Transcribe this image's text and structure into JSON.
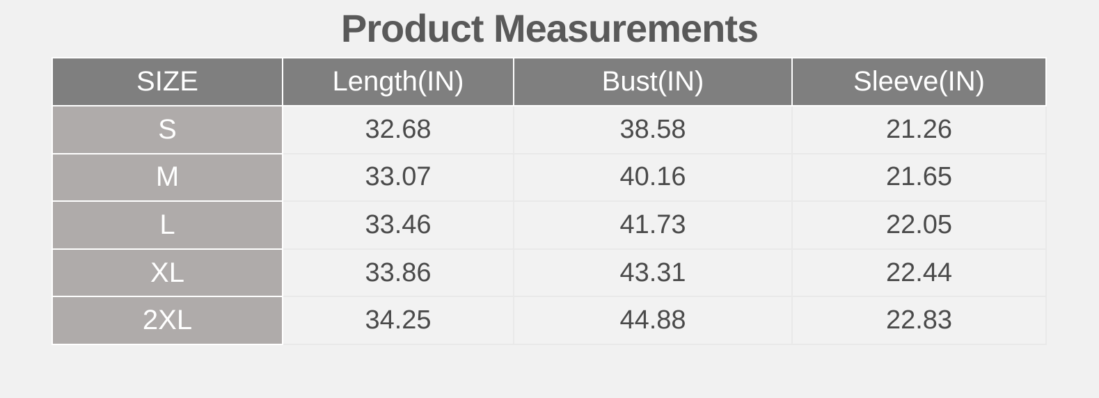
{
  "title": "Product Measurements",
  "chart_data": {
    "type": "table",
    "title": "Product Measurements",
    "columns": [
      "SIZE",
      "Length(IN)",
      "Bust(IN)",
      "Sleeve(IN)"
    ],
    "rows": [
      [
        "S",
        32.68,
        38.58,
        21.26
      ],
      [
        "M",
        33.07,
        40.16,
        21.65
      ],
      [
        "L",
        33.46,
        41.73,
        22.05
      ],
      [
        "XL",
        33.86,
        43.31,
        22.44
      ],
      [
        "2XL",
        34.25,
        44.88,
        22.83
      ]
    ]
  },
  "table": {
    "columns": [
      "SIZE",
      "Length(IN)",
      "Bust(IN)",
      "Sleeve(IN)"
    ],
    "rows": [
      {
        "size": "S",
        "length": "32.68",
        "bust": "38.58",
        "sleeve": "21.26"
      },
      {
        "size": "M",
        "length": "33.07",
        "bust": "40.16",
        "sleeve": "21.65"
      },
      {
        "size": "L",
        "length": "33.46",
        "bust": "41.73",
        "sleeve": "22.05"
      },
      {
        "size": "XL",
        "length": "33.86",
        "bust": "43.31",
        "sleeve": "22.44"
      },
      {
        "size": "2XL",
        "length": "34.25",
        "bust": "44.88",
        "sleeve": "22.83"
      }
    ]
  },
  "colors": {
    "page_bg": "#f1f1f1",
    "header_bg": "#7f7f7f",
    "size_column_bg": "#afabaa",
    "cell_bg": "#f2f2f2",
    "title_text": "#595959",
    "value_text": "#4a4a4a",
    "header_text": "#ffffff",
    "grid_line": "#e9e9e9",
    "cell_gap": "#ffffff"
  }
}
